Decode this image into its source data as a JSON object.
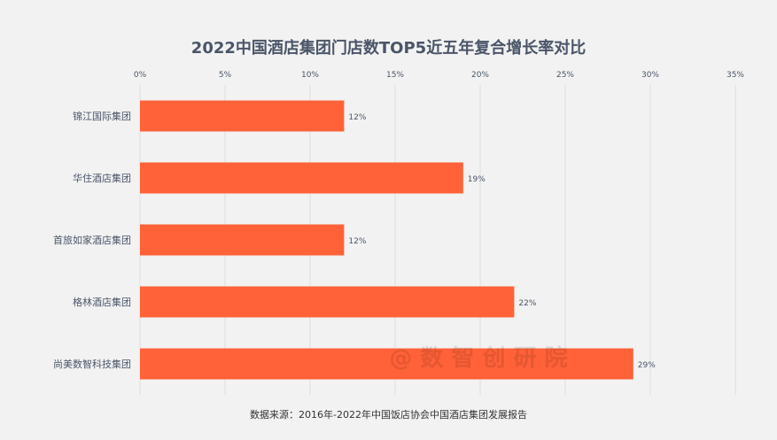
{
  "chart_data": {
    "type": "bar",
    "orientation": "horizontal",
    "title": "2022中国酒店集团门店数TOP5近五年复合增长率对比",
    "categories": [
      "锦江国际集团",
      "华住酒店集团",
      "首旅如家酒店集团",
      "格林酒店集团",
      "尚美数智科技集团"
    ],
    "values": [
      12,
      19,
      12,
      22,
      29
    ],
    "value_labels": [
      "12%",
      "19%",
      "12%",
      "22%",
      "29%"
    ],
    "xlim": [
      0,
      35
    ],
    "x_ticks": [
      0,
      5,
      10,
      15,
      20,
      25,
      30,
      35
    ],
    "x_tick_labels": [
      "0%",
      "5%",
      "10%",
      "15%",
      "20%",
      "25%",
      "30%",
      "35%"
    ],
    "x_axis_position": "top",
    "grid": true,
    "bar_color": "#ff6138"
  },
  "watermark": "@ 数 智 创 研 院",
  "source": "数据来源：2016年-2022年中国饭店协会中国酒店集团发展报告"
}
